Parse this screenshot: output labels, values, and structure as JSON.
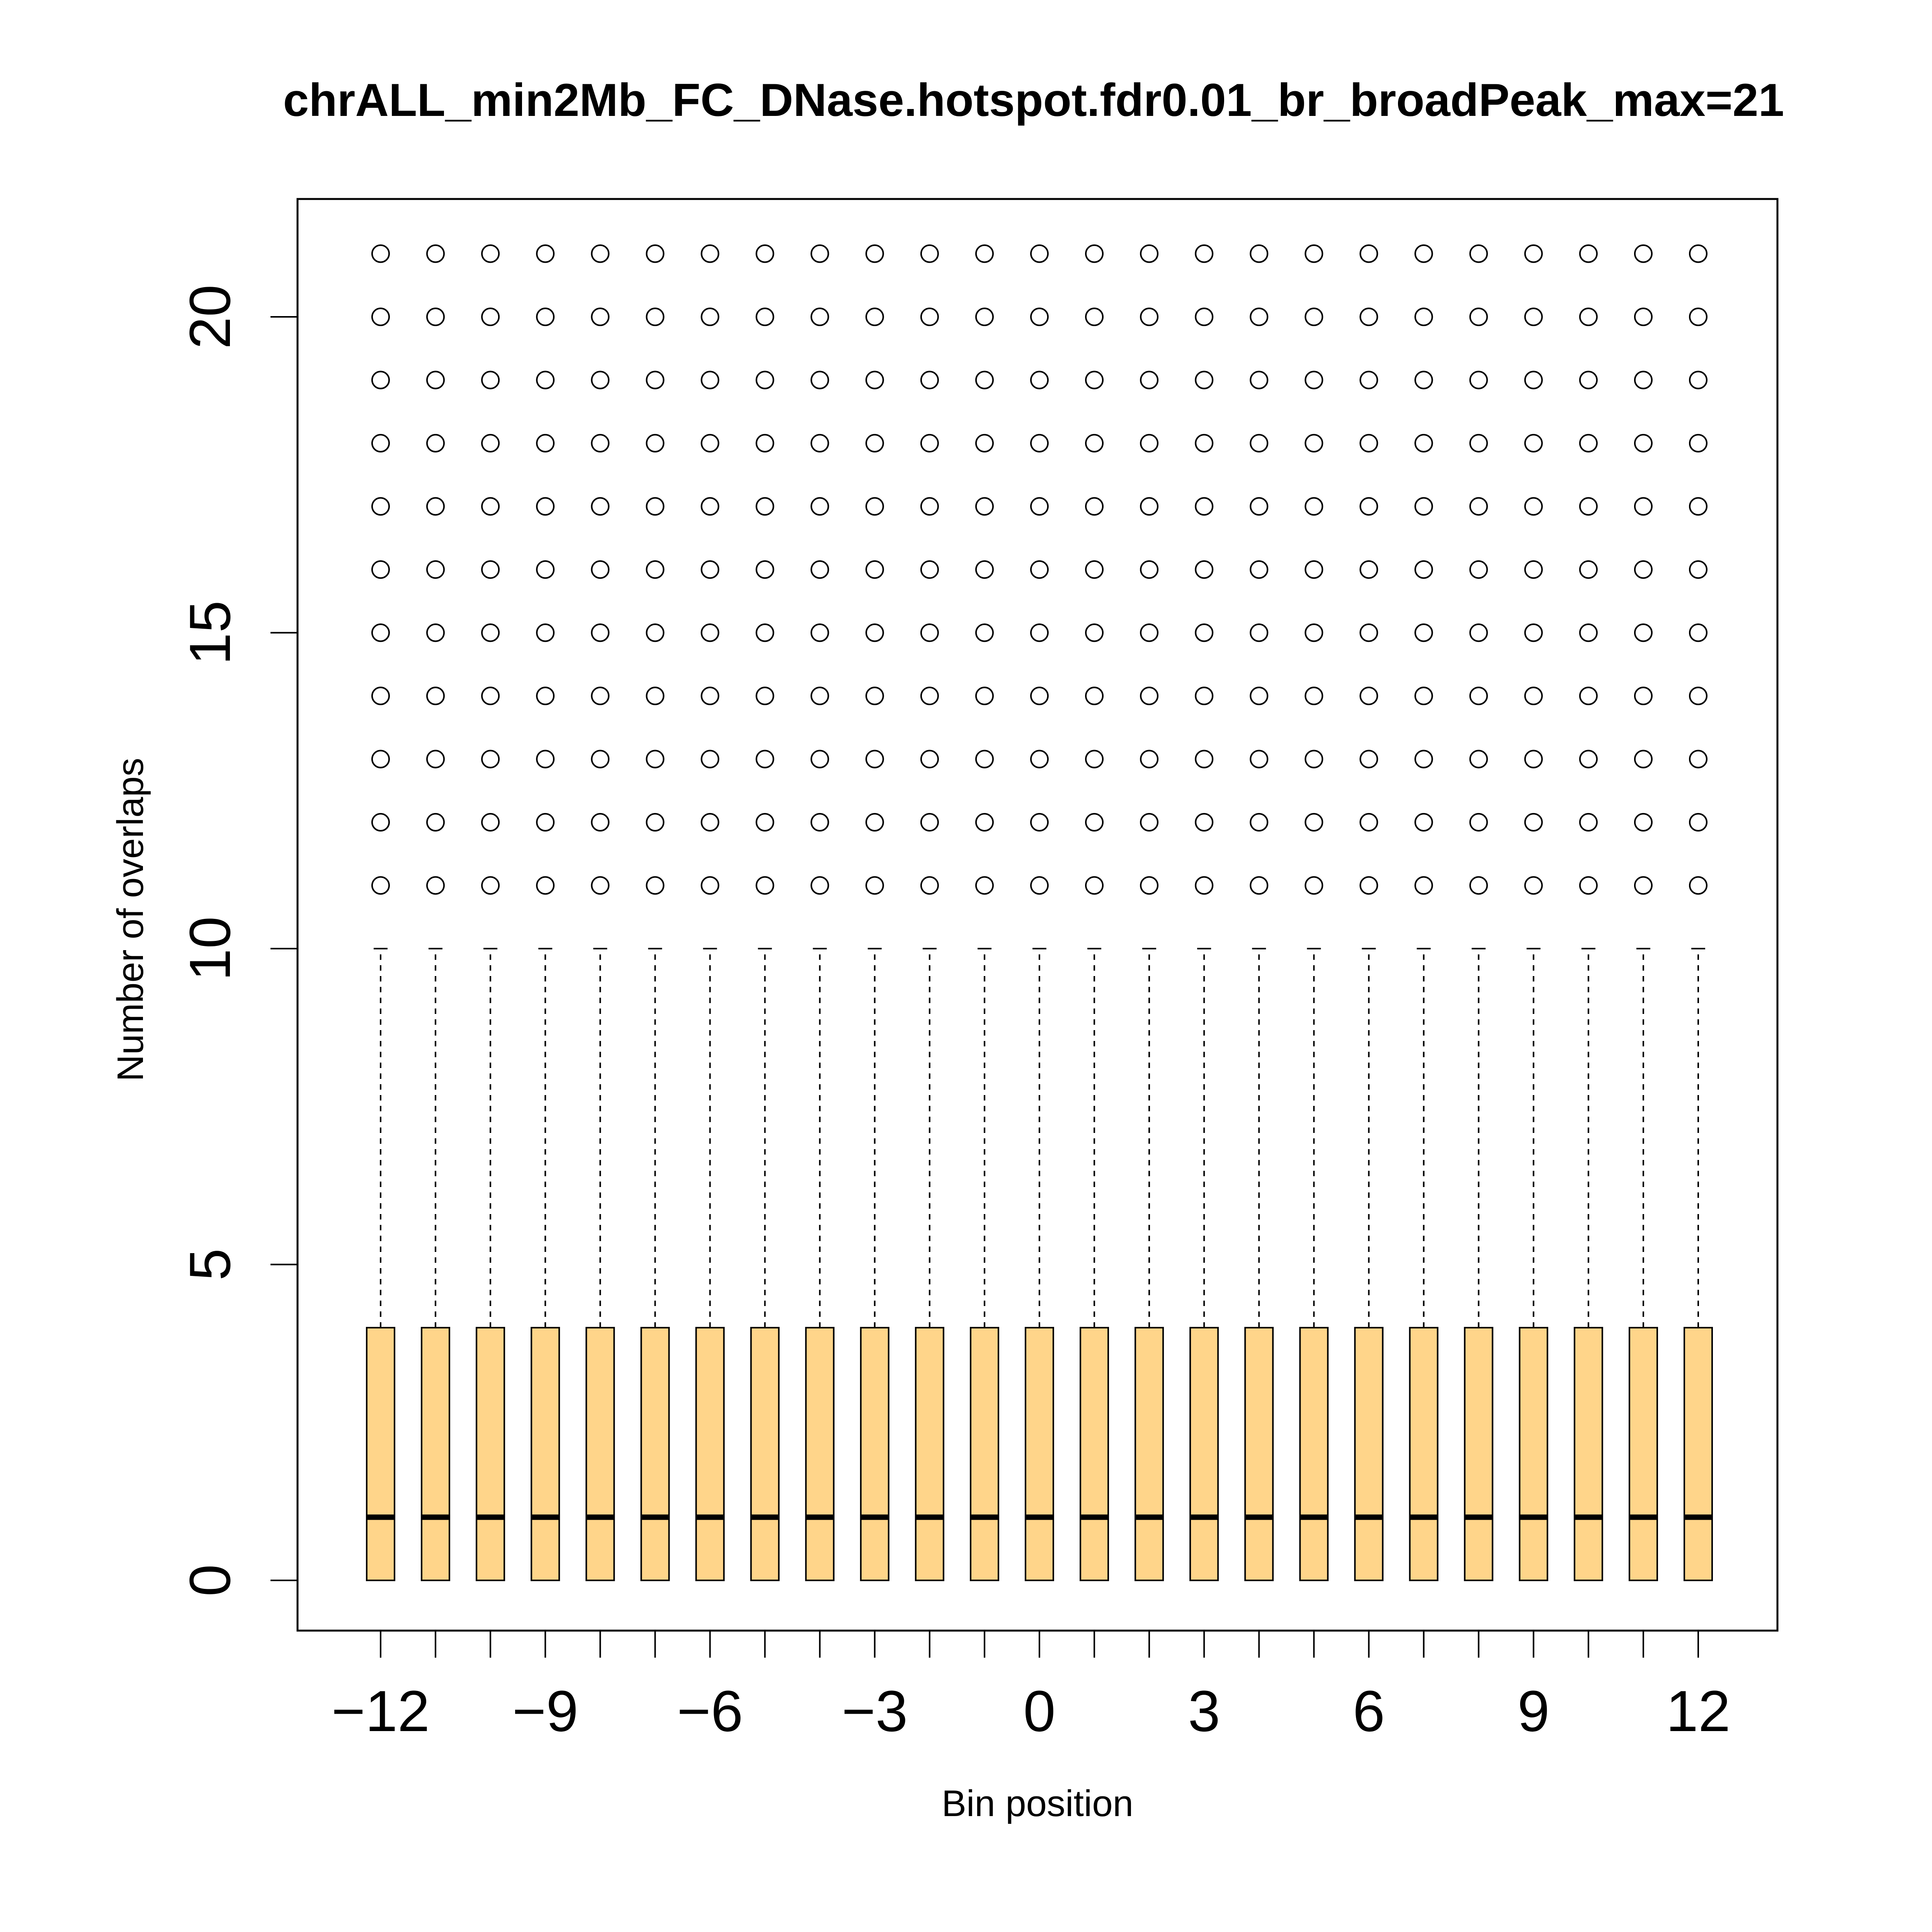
{
  "chart_data": {
    "type": "boxplot",
    "title": "chrALL_min2Mb_FC_DNase.hotspot.fdr0.01_br_broadPeak_max=21",
    "xlabel": "Bin position",
    "ylabel": "Number of overlaps",
    "x_tick_labels": [
      "−12",
      "−9",
      "−6",
      "−3",
      "0",
      "3",
      "6",
      "9",
      "12"
    ],
    "x_tick_values": [
      -12,
      -9,
      -6,
      -3,
      0,
      3,
      6,
      9,
      12
    ],
    "y_tick_labels": [
      "0",
      "5",
      "10",
      "15",
      "20"
    ],
    "y_tick_values": [
      0,
      5,
      10,
      15,
      20
    ],
    "xlim": [
      -13.5,
      13.5
    ],
    "ylim": [
      -0.84,
      21.84
    ],
    "box_fill": "#ffd58a",
    "categories": [
      -12,
      -11,
      -10,
      -9,
      -8,
      -7,
      -6,
      -5,
      -4,
      -3,
      -2,
      -1,
      0,
      1,
      2,
      3,
      4,
      5,
      6,
      7,
      8,
      9,
      10,
      11,
      12
    ],
    "box_stats": {
      "whisker_low": 0,
      "q1": 0,
      "median": 1,
      "q3": 4,
      "whisker_high": 10,
      "outliers": [
        11,
        12,
        13,
        14,
        15,
        16,
        17,
        18,
        19,
        20,
        21
      ]
    },
    "grid": false,
    "legend": "none"
  }
}
